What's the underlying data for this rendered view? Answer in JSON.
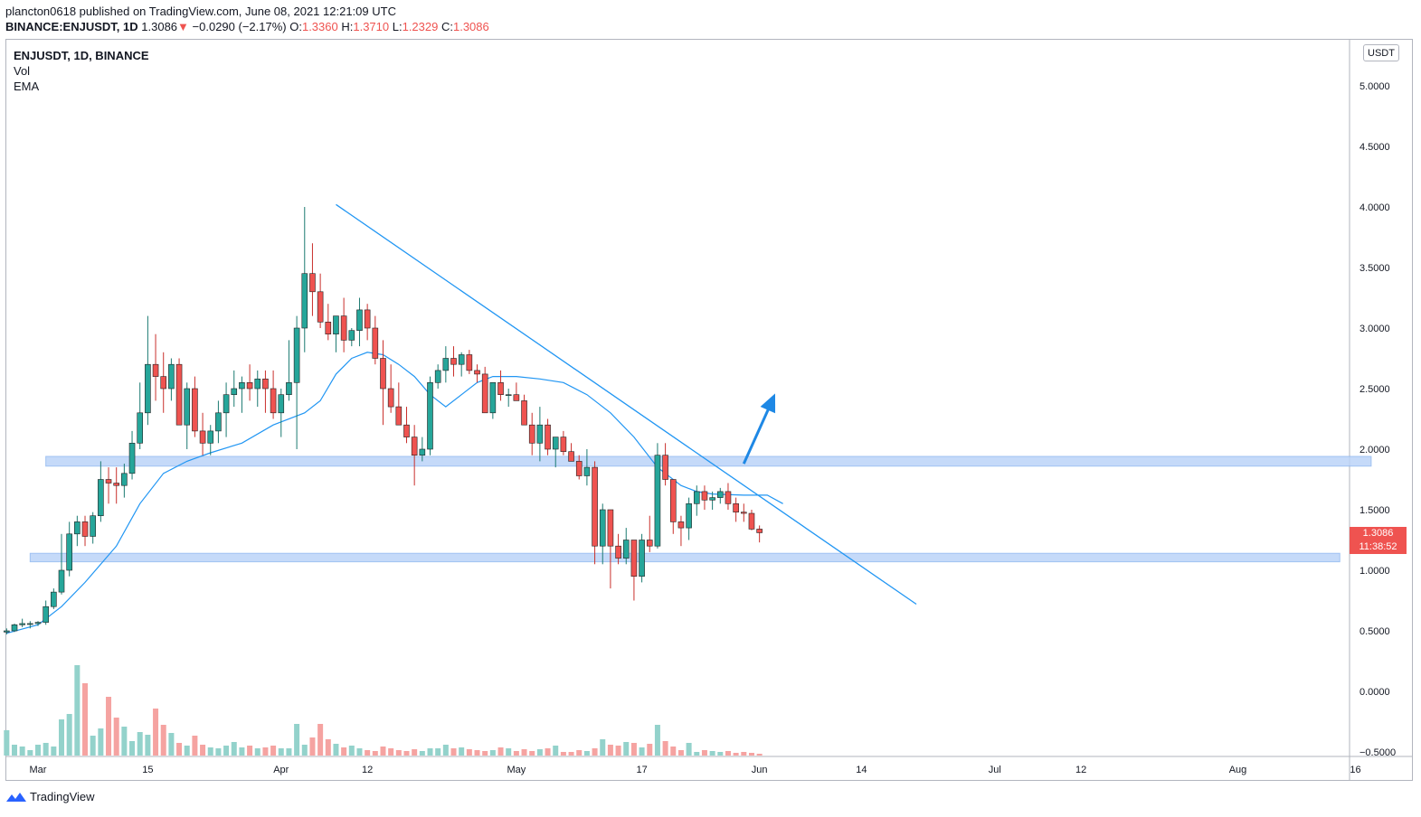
{
  "header": {
    "publisher_line": "plancton0618 published on TradingView.com, June 08, 2021 12:21:09 UTC",
    "symbol": "BINANCE:ENJUSDT, 1D",
    "last": "1.3086",
    "change_arrow": "▼",
    "change": "−0.0290 (−2.17%)",
    "o_label": "O:",
    "o": "1.3360",
    "h_label": "H:",
    "h": "1.3710",
    "l_label": "L:",
    "l": "1.2329",
    "c_label": "C:",
    "c": "1.3086"
  },
  "legend": {
    "title": "ENJUSDT, 1D, BINANCE",
    "vol": "Vol",
    "ema": "EMA"
  },
  "currency_button": "USDT",
  "price_tag": {
    "price": "1.3086",
    "countdown": "11:38:52"
  },
  "footer": {
    "brand": "TradingView",
    "logo_icon": "tradingview-logo-icon"
  },
  "colors": {
    "up": "#26a69a",
    "down": "#ef5350",
    "up_vol": "#93d2cb",
    "down_vol": "#f5a3a1",
    "ema": "#2196f3",
    "trendline": "#2196f3",
    "zone": "#bbd4f8",
    "arrow": "#1e88e5"
  },
  "chart_data": {
    "type": "candlestick",
    "ylim": [
      -0.5,
      5.3
    ],
    "y_ticks": [
      "5.0000",
      "4.5000",
      "4.0000",
      "3.5000",
      "3.0000",
      "2.5000",
      "2.0000",
      "1.5000",
      "1.0000",
      "0.5000",
      "0.0000",
      "−0.5000"
    ],
    "y_tick_values": [
      5.0,
      4.5,
      4.0,
      3.5,
      3.0,
      2.5,
      2.0,
      1.5,
      1.0,
      0.5,
      0.0,
      -0.5
    ],
    "x_ticks": [
      {
        "label": "Mar",
        "day": 0
      },
      {
        "label": "15",
        "day": 14
      },
      {
        "label": "Apr",
        "day": 31
      },
      {
        "label": "12",
        "day": 42
      },
      {
        "label": "May",
        "day": 61
      },
      {
        "label": "17",
        "day": 77
      },
      {
        "label": "Jun",
        "day": 92
      },
      {
        "label": "14",
        "day": 105
      },
      {
        "label": "Jul",
        "day": 122
      },
      {
        "label": "12",
        "day": 133
      },
      {
        "label": "Aug",
        "day": 153
      },
      {
        "label": "16",
        "day": 168
      }
    ],
    "x_day_range": [
      -4,
      178
    ],
    "first_candle_day": -4,
    "candles_ohlc": [
      [
        0.49,
        0.52,
        0.47,
        0.5
      ],
      [
        0.5,
        0.56,
        0.49,
        0.55
      ],
      [
        0.55,
        0.6,
        0.53,
        0.56
      ],
      [
        0.56,
        0.58,
        0.52,
        0.56
      ],
      [
        0.56,
        0.58,
        0.54,
        0.57
      ],
      [
        0.57,
        0.75,
        0.55,
        0.7
      ],
      [
        0.7,
        0.85,
        0.68,
        0.82
      ],
      [
        0.82,
        1.3,
        0.8,
        1.0
      ],
      [
        1.0,
        1.4,
        0.95,
        1.3
      ],
      [
        1.3,
        1.45,
        1.2,
        1.4
      ],
      [
        1.4,
        1.45,
        1.2,
        1.28
      ],
      [
        1.28,
        1.48,
        1.22,
        1.45
      ],
      [
        1.45,
        1.9,
        1.4,
        1.75
      ],
      [
        1.75,
        1.85,
        1.55,
        1.72
      ],
      [
        1.72,
        1.85,
        1.55,
        1.7
      ],
      [
        1.7,
        1.88,
        1.6,
        1.8
      ],
      [
        1.8,
        2.15,
        1.75,
        2.05
      ],
      [
        2.05,
        2.55,
        2.0,
        2.3
      ],
      [
        2.3,
        3.1,
        2.2,
        2.7
      ],
      [
        2.7,
        2.95,
        2.4,
        2.6
      ],
      [
        2.6,
        2.8,
        2.3,
        2.5
      ],
      [
        2.5,
        2.75,
        2.4,
        2.7
      ],
      [
        2.7,
        2.75,
        2.2,
        2.2
      ],
      [
        2.2,
        2.55,
        2.0,
        2.5
      ],
      [
        2.5,
        2.6,
        2.1,
        2.15
      ],
      [
        2.15,
        2.3,
        1.95,
        2.05
      ],
      [
        2.05,
        2.2,
        1.95,
        2.15
      ],
      [
        2.15,
        2.4,
        2.05,
        2.3
      ],
      [
        2.3,
        2.55,
        2.1,
        2.45
      ],
      [
        2.45,
        2.65,
        2.35,
        2.5
      ],
      [
        2.5,
        2.6,
        2.3,
        2.55
      ],
      [
        2.55,
        2.7,
        2.4,
        2.5
      ],
      [
        2.5,
        2.65,
        2.35,
        2.58
      ],
      [
        2.58,
        2.65,
        2.3,
        2.5
      ],
      [
        2.5,
        2.65,
        2.25,
        2.3
      ],
      [
        2.3,
        2.5,
        2.1,
        2.45
      ],
      [
        2.45,
        2.9,
        2.4,
        2.55
      ],
      [
        2.55,
        3.1,
        2.0,
        3.0
      ],
      [
        3.0,
        4.0,
        2.8,
        3.45
      ],
      [
        3.45,
        3.7,
        3.1,
        3.3
      ],
      [
        3.3,
        3.45,
        3.0,
        3.05
      ],
      [
        3.05,
        3.2,
        2.9,
        2.95
      ],
      [
        2.95,
        3.05,
        2.8,
        3.1
      ],
      [
        3.1,
        3.25,
        2.8,
        2.9
      ],
      [
        2.9,
        3.0,
        2.85,
        2.98
      ],
      [
        2.98,
        3.25,
        2.85,
        3.15
      ],
      [
        3.15,
        3.2,
        2.9,
        3.0
      ],
      [
        3.0,
        3.1,
        2.7,
        2.75
      ],
      [
        2.75,
        2.9,
        2.2,
        2.5
      ],
      [
        2.5,
        2.7,
        2.3,
        2.35
      ],
      [
        2.35,
        2.55,
        2.2,
        2.2
      ],
      [
        2.2,
        2.35,
        2.05,
        2.1
      ],
      [
        2.1,
        2.2,
        1.7,
        1.95
      ],
      [
        1.95,
        2.1,
        1.9,
        2.0
      ],
      [
        2.0,
        2.6,
        1.95,
        2.55
      ],
      [
        2.55,
        2.7,
        2.5,
        2.65
      ],
      [
        2.65,
        2.85,
        2.55,
        2.75
      ],
      [
        2.75,
        2.85,
        2.6,
        2.7
      ],
      [
        2.7,
        2.8,
        2.6,
        2.78
      ],
      [
        2.78,
        2.82,
        2.62,
        2.65
      ],
      [
        2.65,
        2.7,
        2.55,
        2.62
      ],
      [
        2.62,
        2.68,
        2.3,
        2.3
      ],
      [
        2.3,
        2.55,
        2.25,
        2.55
      ],
      [
        2.55,
        2.65,
        2.4,
        2.45
      ],
      [
        2.45,
        2.5,
        2.35,
        2.45
      ],
      [
        2.45,
        2.55,
        2.4,
        2.4
      ],
      [
        2.4,
        2.45,
        2.2,
        2.2
      ],
      [
        2.2,
        2.3,
        1.95,
        2.05
      ],
      [
        2.05,
        2.35,
        1.9,
        2.2
      ],
      [
        2.2,
        2.25,
        1.95,
        2.0
      ],
      [
        2.0,
        2.1,
        1.85,
        2.1
      ],
      [
        2.1,
        2.15,
        1.95,
        1.98
      ],
      [
        1.98,
        2.05,
        1.9,
        1.9
      ],
      [
        1.9,
        1.95,
        1.75,
        1.78
      ],
      [
        1.78,
        2.0,
        1.7,
        1.85
      ],
      [
        1.85,
        1.9,
        1.05,
        1.2
      ],
      [
        1.2,
        1.55,
        1.05,
        1.5
      ],
      [
        1.5,
        1.5,
        0.85,
        1.2
      ],
      [
        1.2,
        1.3,
        1.05,
        1.1
      ],
      [
        1.1,
        1.35,
        1.05,
        1.25
      ],
      [
        1.25,
        1.25,
        0.75,
        0.95
      ],
      [
        0.95,
        1.3,
        0.9,
        1.25
      ],
      [
        1.25,
        1.45,
        1.15,
        1.2
      ],
      [
        1.2,
        2.05,
        1.18,
        1.95
      ],
      [
        1.95,
        2.05,
        1.7,
        1.75
      ],
      [
        1.75,
        1.75,
        1.3,
        1.4
      ],
      [
        1.4,
        1.45,
        1.2,
        1.35
      ],
      [
        1.35,
        1.6,
        1.25,
        1.55
      ],
      [
        1.55,
        1.7,
        1.45,
        1.65
      ],
      [
        1.65,
        1.7,
        1.5,
        1.58
      ],
      [
        1.58,
        1.65,
        1.5,
        1.6
      ],
      [
        1.6,
        1.68,
        1.55,
        1.65
      ],
      [
        1.65,
        1.72,
        1.5,
        1.55
      ],
      [
        1.55,
        1.6,
        1.4,
        1.48
      ],
      [
        1.48,
        1.55,
        1.4,
        1.47
      ],
      [
        1.47,
        1.5,
        1.33,
        1.34
      ],
      [
        1.34,
        1.37,
        1.23,
        1.31
      ]
    ],
    "volume_scale_max": 100,
    "volumes": [
      28,
      12,
      10,
      6,
      12,
      14,
      10,
      40,
      46,
      100,
      80,
      22,
      30,
      65,
      42,
      32,
      16,
      26,
      23,
      52,
      34,
      25,
      14,
      11,
      22,
      12,
      9,
      8,
      11,
      15,
      9,
      11,
      8,
      9,
      11,
      8,
      8,
      35,
      12,
      20,
      35,
      18,
      13,
      9,
      11,
      8,
      6,
      5,
      10,
      8,
      6,
      5,
      7,
      5,
      8,
      8,
      12,
      8,
      9,
      7,
      6,
      5,
      6,
      9,
      8,
      5,
      7,
      5,
      7,
      8,
      11,
      4,
      4,
      6,
      5,
      8,
      18,
      12,
      11,
      15,
      14,
      9,
      13,
      34,
      16,
      10,
      6,
      14,
      4,
      6,
      5,
      4,
      5,
      3,
      4,
      3,
      2
    ],
    "ema_points": [
      [
        -4,
        0.48
      ],
      [
        0,
        0.55
      ],
      [
        3,
        0.7
      ],
      [
        6,
        0.9
      ],
      [
        10,
        1.2
      ],
      [
        13,
        1.55
      ],
      [
        16,
        1.8
      ],
      [
        19,
        1.9
      ],
      [
        22,
        1.97
      ],
      [
        26,
        2.05
      ],
      [
        30,
        2.2
      ],
      [
        34,
        2.3
      ],
      [
        36,
        2.4
      ],
      [
        38,
        2.62
      ],
      [
        40,
        2.75
      ],
      [
        42,
        2.8
      ],
      [
        44,
        2.78
      ],
      [
        46,
        2.7
      ],
      [
        48,
        2.6
      ],
      [
        50,
        2.45
      ],
      [
        52,
        2.35
      ],
      [
        54,
        2.45
      ],
      [
        56,
        2.55
      ],
      [
        58,
        2.6
      ],
      [
        61,
        2.6
      ],
      [
        64,
        2.58
      ],
      [
        67,
        2.55
      ],
      [
        70,
        2.45
      ],
      [
        73,
        2.3
      ],
      [
        76,
        2.1
      ],
      [
        79,
        1.85
      ],
      [
        82,
        1.7
      ],
      [
        84,
        1.65
      ],
      [
        86,
        1.63
      ],
      [
        90,
        1.62
      ],
      [
        93,
        1.62
      ],
      [
        95,
        1.55
      ]
    ],
    "trendline": {
      "start": {
        "day": 38,
        "price": 4.02
      },
      "end": {
        "day": 112,
        "price": 0.72
      }
    },
    "support_zones": [
      {
        "day_start": 1,
        "day_end": 170,
        "top": 1.94,
        "bottom": 1.86
      },
      {
        "day_start": -1,
        "day_end": 166,
        "top": 1.14,
        "bottom": 1.07
      }
    ],
    "arrow": {
      "from": {
        "day": 90,
        "price": 1.88
      },
      "to": {
        "day": 94,
        "price": 2.46
      }
    }
  }
}
